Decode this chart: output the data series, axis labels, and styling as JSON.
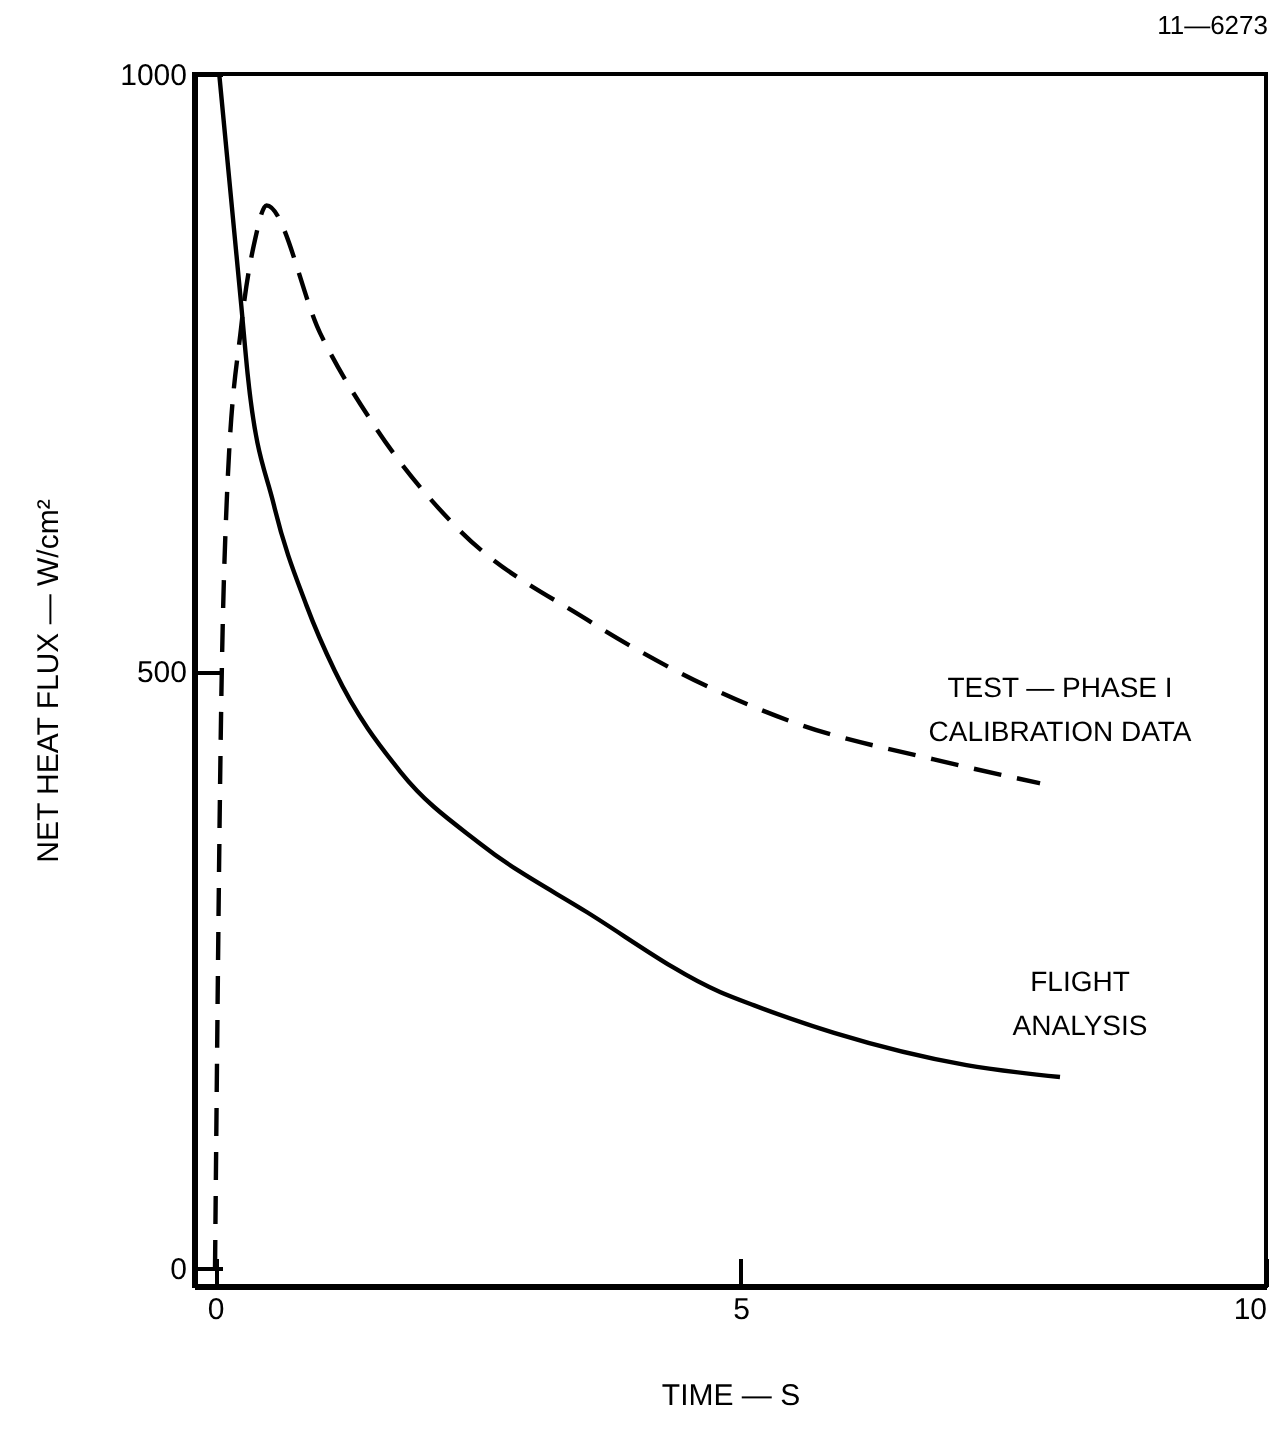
{
  "chart_data": {
    "type": "line",
    "xlabel": "TIME — S",
    "ylabel": "NET HEAT FLUX — W/cm²",
    "annotations": [
      "11—6273"
    ],
    "xlim": [
      -0.2,
      10
    ],
    "xticks": [
      0,
      5,
      10
    ],
    "ylim": [
      -15,
      1000
    ],
    "yticks": [
      0,
      500,
      1000
    ],
    "grid": false,
    "series": [
      {
        "name": "TEST — PHASE I\nCALIBRATION DATA",
        "color": "#000000",
        "line_style": "dashed",
        "x": [
          0,
          0.06,
          0.11,
          0.25,
          0.38,
          0.49,
          1.0,
          1.52,
          2.28,
          3.54,
          4.81,
          5.57,
          6.84,
          7.85
        ],
        "values": [
          0,
          477,
          639,
          789,
          861,
          890,
          783,
          705,
          622,
          543,
          482,
          455,
          426,
          406
        ]
      },
      {
        "name": "FLIGHT\nANALYSIS",
        "color": "#000000",
        "line_style": "solid",
        "x": [
          0.04,
          0.25,
          0.31,
          0.56,
          0.87,
          1.14,
          1.77,
          2.53,
          3.54,
          4.81,
          5.13,
          5.89,
          7.15,
          8.04
        ],
        "values": [
          1000,
          806,
          749,
          639,
          555,
          500,
          415,
          355,
          298,
          231,
          220,
          197,
          170,
          160
        ]
      }
    ]
  }
}
